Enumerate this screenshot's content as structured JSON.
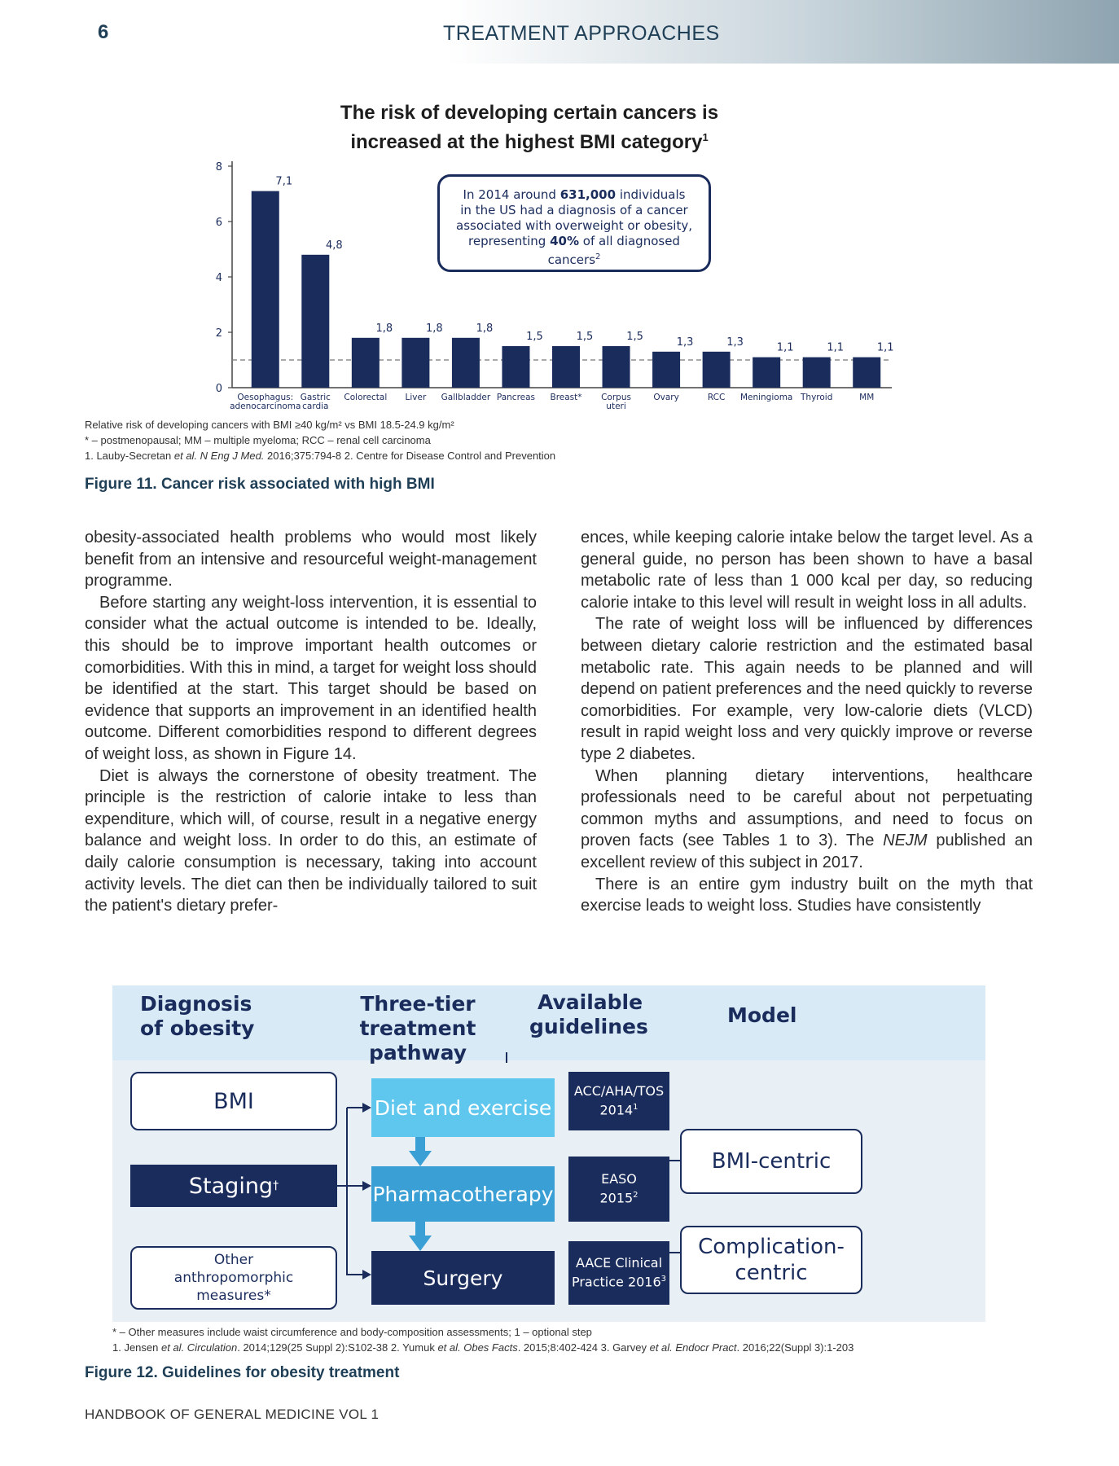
{
  "header": {
    "page_number": "6",
    "section_title": "TREATMENT APPROACHES"
  },
  "figure11": {
    "title_line1": "The risk of developing certain cancers is",
    "title_line2": "increased at the highest BMI category",
    "title_ref": "1",
    "info_line1": "In 2014 around",
    "info_bold1": "631,000",
    "info_line1b": "individuals",
    "info_line2": "in the US had a diagnosis of a cancer",
    "info_line3": "associated with overweight or obesity,",
    "info_line4a": "representing",
    "info_bold2": "40%",
    "info_line4b": "of all diagnosed",
    "info_line5": "cancers",
    "info_ref": "2",
    "note1": "Relative risk of developing cancers with BMI ≥40 kg/m² vs BMI 18.5-24.9 kg/m²",
    "note2": "* – postmenopausal; MM – multiple myeloma; RCC – renal cell carcinoma",
    "note3_a": "1. Lauby-Secretan ",
    "note3_b": "et al. N Eng J Med.",
    "note3_c": " 2016;375:794-8    2. Centre for Disease Control and Prevention",
    "caption": "Figure 11. Cancer risk associated with high BMI"
  },
  "chart_data": {
    "type": "bar",
    "title": "The risk of developing certain cancers is increased at the highest BMI category",
    "ylabel": "Relative risk",
    "xlabel": "",
    "ylim": [
      0,
      8
    ],
    "yticks": [
      0,
      2,
      4,
      6,
      8
    ],
    "reference_line": 1,
    "grid": false,
    "bar_color": "#1a2c5c",
    "categories": [
      [
        "Oesophagus:",
        "adenocarcinoma"
      ],
      [
        "Gastric",
        "cardia"
      ],
      [
        "Colorectal"
      ],
      [
        "Liver"
      ],
      [
        "Gallbladder"
      ],
      [
        "Pancreas"
      ],
      [
        "Breast*"
      ],
      [
        "Corpus",
        "uteri"
      ],
      [
        "Ovary"
      ],
      [
        "RCC"
      ],
      [
        "Meningioma"
      ],
      [
        "Thyroid"
      ],
      [
        "MM"
      ]
    ],
    "values": [
      7.1,
      4.8,
      1.8,
      1.8,
      1.8,
      1.5,
      1.5,
      1.5,
      1.3,
      1.3,
      1.1,
      1.1,
      1.1
    ],
    "value_labels": [
      "7,1",
      "4,8",
      "1,8",
      "1,8",
      "1,8",
      "1,5",
      "1,5",
      "1,5",
      "1,3",
      "1,3",
      "1,1",
      "1,1",
      "1,1"
    ]
  },
  "body": {
    "col1": [
      "obesity-associated health problems who would most likely benefit from an intensive and resourceful weight-management programme.",
      "Before starting any weight-loss intervention, it is essential to consider what the actual outcome is intended to be. Ideally, this should be to improve important health outcomes or comorbidities. With this in mind, a target for weight loss should be identified at the start. This target should be based on evidence that supports an improvement in an identified health outcome. Different comorbidities respond to different degrees of weight loss, as shown in Figure 14.",
      "Diet is always the cornerstone of obesity treatment. The principle is the restriction of calorie intake to less than expenditure, which will, of course, result in a negative energy balance and weight loss. In order to do this, an estimate of daily calorie consumption is necessary, taking into account activity levels. The diet can then be individually tailored to suit the patient's dietary prefer-"
    ],
    "col2_p1": "ences, while keeping calorie intake below the target level. As a general guide, no person has been shown to have a basal metabolic rate of less than 1 000 kcal per day, so reducing calorie intake to this level will result in weight loss in all adults.",
    "col2_p2": "The rate of weight loss will be influenced by differences between dietary calorie restriction and the estimated basal metabolic rate. This again needs to be planned and will depend on patient preferences and the need quickly to reverse comorbidities. For example, very low-calorie diets (VLCD) result in rapid weight loss and very quickly improve or reverse type 2 diabetes.",
    "col2_p3a": "When planning dietary interventions, healthcare professionals need to be careful about not perpetuating common myths and assumptions, and need to focus on proven facts (see Tables 1 to 3). The ",
    "col2_p3_em": "NEJM",
    "col2_p3b": " published an excellent review of this subject in 2017.",
    "col2_p4": "There is an entire gym industry built on the myth that exercise leads to weight loss. Studies have consistently"
  },
  "figure12": {
    "head_diag_1": "Diagnosis",
    "head_diag_2": "of obesity",
    "head_tier_1": "Three-tier",
    "head_tier_2": "treatment pathway",
    "head_guide_1": "Available",
    "head_guide_2": "guidelines",
    "head_model": "Model",
    "bmi": "BMI",
    "staging": "Staging",
    "staging_mark": "†",
    "other_1": "Other",
    "other_2": "anthropomorphic",
    "other_3": "measures*",
    "diet": "Diet and exercise",
    "pharma": "Pharmacotherapy",
    "surgery": "Surgery",
    "g1_1": "ACC/AHA/TOS",
    "g1_2": "2014",
    "g1_ref": "1",
    "g2_1": "EASO",
    "g2_2": "2015",
    "g2_ref": "2",
    "g3_1": "AACE Clinical",
    "g3_2": "Practice 2016",
    "g3_ref": "3",
    "model1": "BMI-centric",
    "model2_1": "Complication-",
    "model2_2": "centric",
    "note1": "* – Other measures include waist circumference and body-composition assessments; 1 – optional step",
    "note2_a": "1. Jensen ",
    "note2_b": "et al. Circulation",
    "note2_c": ". 2014;129(25 Suppl 2):S102-38    2. Yumuk ",
    "note2_d": "et al. Obes Facts",
    "note2_e": ". 2015;8:402-424    3. Garvey ",
    "note2_f": "et al. Endocr Pract",
    "note2_g": ". 2016;22(Suppl 3):1-203",
    "caption": "Figure 12. Guidelines for obesity treatment"
  },
  "footer": {
    "text": "HANDBOOK OF GENERAL MEDICINE VOL 1"
  }
}
